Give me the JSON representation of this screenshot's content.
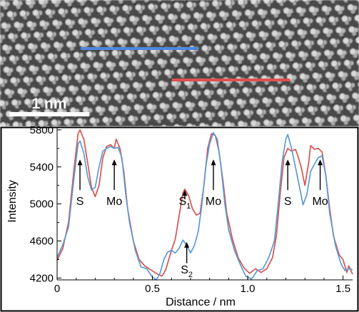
{
  "stem_image": {
    "scale_bar_label": "1 nm",
    "blue_line_color": "#4f86e0",
    "red_line_color": "#e05050"
  },
  "chart_data": {
    "type": "line",
    "xlabel": "Distance / nm",
    "ylabel": "Intensity",
    "xlim": [
      0,
      1.55
    ],
    "ylim": [
      4180,
      5830
    ],
    "x_ticks": [
      "0",
      "0.5",
      "1.0",
      "1.5"
    ],
    "y_ticks": [
      "4200",
      "4600",
      "5000",
      "5400",
      "5800"
    ],
    "grid": false,
    "series": [
      {
        "color": "#d9534f",
        "points": [
          [
            0.0,
            4390
          ],
          [
            0.03,
            4520
          ],
          [
            0.06,
            4800
          ],
          [
            0.09,
            5400
          ],
          [
            0.11,
            5760
          ],
          [
            0.12,
            5800
          ],
          [
            0.14,
            5700
          ],
          [
            0.16,
            5450
          ],
          [
            0.18,
            5180
          ],
          [
            0.2,
            5080
          ],
          [
            0.22,
            5200
          ],
          [
            0.24,
            5500
          ],
          [
            0.26,
            5620
          ],
          [
            0.28,
            5640
          ],
          [
            0.3,
            5600
          ],
          [
            0.31,
            5700
          ],
          [
            0.33,
            5600
          ],
          [
            0.35,
            5350
          ],
          [
            0.37,
            4950
          ],
          [
            0.4,
            4600
          ],
          [
            0.43,
            4400
          ],
          [
            0.46,
            4330
          ],
          [
            0.49,
            4290
          ],
          [
            0.52,
            4250
          ],
          [
            0.55,
            4220
          ],
          [
            0.57,
            4290
          ],
          [
            0.6,
            4500
          ],
          [
            0.62,
            4620
          ],
          [
            0.64,
            4870
          ],
          [
            0.66,
            5120
          ],
          [
            0.67,
            5160
          ],
          [
            0.69,
            5090
          ],
          [
            0.71,
            4950
          ],
          [
            0.73,
            4880
          ],
          [
            0.75,
            4900
          ],
          [
            0.77,
            5200
          ],
          [
            0.79,
            5600
          ],
          [
            0.81,
            5760
          ],
          [
            0.83,
            5740
          ],
          [
            0.85,
            5560
          ],
          [
            0.87,
            5250
          ],
          [
            0.89,
            4900
          ],
          [
            0.92,
            4620
          ],
          [
            0.95,
            4420
          ],
          [
            0.98,
            4310
          ],
          [
            1.01,
            4250
          ],
          [
            1.04,
            4300
          ],
          [
            1.07,
            4260
          ],
          [
            1.1,
            4300
          ],
          [
            1.13,
            4420
          ],
          [
            1.15,
            4650
          ],
          [
            1.17,
            5100
          ],
          [
            1.19,
            5500
          ],
          [
            1.21,
            5600
          ],
          [
            1.23,
            5570
          ],
          [
            1.25,
            5590
          ],
          [
            1.26,
            5540
          ],
          [
            1.28,
            5400
          ],
          [
            1.3,
            5200
          ],
          [
            1.32,
            5450
          ],
          [
            1.33,
            5630
          ],
          [
            1.35,
            5590
          ],
          [
            1.37,
            5600
          ],
          [
            1.39,
            5560
          ],
          [
            1.41,
            5300
          ],
          [
            1.43,
            4950
          ],
          [
            1.45,
            4650
          ],
          [
            1.48,
            4450
          ],
          [
            1.5,
            4400
          ],
          [
            1.52,
            4260
          ],
          [
            1.53,
            4330
          ],
          [
            1.55,
            4240
          ]
        ]
      },
      {
        "color": "#5b9bd5",
        "points": [
          [
            0.0,
            4420
          ],
          [
            0.03,
            4560
          ],
          [
            0.06,
            4750
          ],
          [
            0.09,
            5300
          ],
          [
            0.11,
            5650
          ],
          [
            0.12,
            5680
          ],
          [
            0.14,
            5550
          ],
          [
            0.16,
            5300
          ],
          [
            0.18,
            5150
          ],
          [
            0.2,
            5180
          ],
          [
            0.22,
            5400
          ],
          [
            0.24,
            5570
          ],
          [
            0.26,
            5600
          ],
          [
            0.28,
            5620
          ],
          [
            0.3,
            5600
          ],
          [
            0.32,
            5610
          ],
          [
            0.34,
            5500
          ],
          [
            0.36,
            5100
          ],
          [
            0.38,
            4800
          ],
          [
            0.41,
            4500
          ],
          [
            0.44,
            4320
          ],
          [
            0.47,
            4300
          ],
          [
            0.5,
            4210
          ],
          [
            0.52,
            4180
          ],
          [
            0.54,
            4250
          ],
          [
            0.56,
            4400
          ],
          [
            0.58,
            4480
          ],
          [
            0.6,
            4500
          ],
          [
            0.62,
            4470
          ],
          [
            0.64,
            4520
          ],
          [
            0.66,
            4610
          ],
          [
            0.68,
            4550
          ],
          [
            0.7,
            4470
          ],
          [
            0.72,
            4550
          ],
          [
            0.74,
            4700
          ],
          [
            0.76,
            5000
          ],
          [
            0.78,
            5400
          ],
          [
            0.8,
            5650
          ],
          [
            0.82,
            5770
          ],
          [
            0.84,
            5700
          ],
          [
            0.86,
            5400
          ],
          [
            0.88,
            5000
          ],
          [
            0.9,
            4720
          ],
          [
            0.93,
            4500
          ],
          [
            0.96,
            4350
          ],
          [
            0.99,
            4220
          ],
          [
            1.02,
            4190
          ],
          [
            1.05,
            4280
          ],
          [
            1.08,
            4300
          ],
          [
            1.11,
            4420
          ],
          [
            1.14,
            4600
          ],
          [
            1.16,
            5000
          ],
          [
            1.18,
            5450
          ],
          [
            1.2,
            5700
          ],
          [
            1.21,
            5750
          ],
          [
            1.23,
            5600
          ],
          [
            1.25,
            5400
          ],
          [
            1.27,
            5200
          ],
          [
            1.29,
            4990
          ],
          [
            1.31,
            5100
          ],
          [
            1.33,
            5350
          ],
          [
            1.35,
            5430
          ],
          [
            1.37,
            5500
          ],
          [
            1.39,
            5520
          ],
          [
            1.41,
            5300
          ],
          [
            1.43,
            4900
          ],
          [
            1.46,
            4550
          ],
          [
            1.49,
            4350
          ],
          [
            1.51,
            4280
          ],
          [
            1.53,
            4300
          ],
          [
            1.55,
            4290
          ]
        ]
      }
    ],
    "annotations": [
      {
        "label": "S",
        "sub": "",
        "x": 0.12,
        "tip": 5480,
        "tail": 5150,
        "text_y": 4990
      },
      {
        "label": "Mo",
        "sub": "",
        "x": 0.3,
        "tip": 5480,
        "tail": 5150,
        "text_y": 4990
      },
      {
        "label": "S",
        "sub": "1",
        "x": 0.67,
        "tip": 5150,
        "tail": 5050,
        "text_y": 4990
      },
      {
        "label": "Mo",
        "sub": "",
        "x": 0.82,
        "tip": 5480,
        "tail": 5150,
        "text_y": 4990
      },
      {
        "label": "S",
        "sub": "2",
        "x": 0.68,
        "tip": 4590,
        "tail": 4360,
        "text_y": 4250
      },
      {
        "label": "S",
        "sub": "",
        "x": 1.21,
        "tip": 5480,
        "tail": 5150,
        "text_y": 4990
      },
      {
        "label": "Mo",
        "sub": "",
        "x": 1.38,
        "tip": 5480,
        "tail": 5150,
        "text_y": 4990
      }
    ]
  }
}
